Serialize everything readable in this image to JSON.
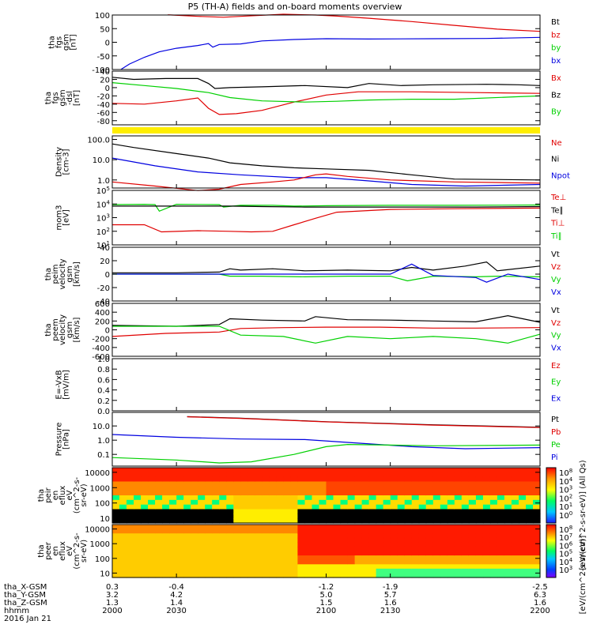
{
  "title": "P5 (TH-A) fields and on-board moments overview",
  "colors": {
    "black": "#000000",
    "red": "#e00000",
    "green": "#00d000",
    "blue": "#0000e0",
    "yellow": "#ffee00"
  },
  "chart_data": [
    {
      "id": "p1",
      "type": "line",
      "ylabel": [
        "tha",
        "fgs",
        "gsm",
        "[nT]"
      ],
      "yscale": "linear",
      "ylim": [
        -100,
        100
      ],
      "yticks": [
        "100",
        "50",
        "0",
        "-50",
        "-100"
      ],
      "legend": [
        {
          "label": "Bt",
          "color": "black"
        },
        {
          "label": "bz",
          "color": "red"
        },
        {
          "label": "by",
          "color": "green"
        },
        {
          "label": "bx",
          "color": "blue"
        }
      ],
      "series": [
        {
          "name": "bz",
          "color": "red",
          "x": [
            2026,
            2028,
            2040,
            2052,
            2060,
            2080,
            2095,
            2105,
            2120,
            2140,
            2160,
            2180,
            2200
          ],
          "y": [
            101,
            100,
            95,
            92,
            95,
            103,
            100,
            96,
            88,
            76,
            62,
            48,
            40
          ]
        },
        {
          "name": "bx",
          "color": "blue",
          "x": [
            2004,
            2008,
            2015,
            2022,
            2030,
            2040,
            2045,
            2047,
            2050,
            2060,
            2070,
            2085,
            2100,
            2120,
            2150,
            2175,
            2200
          ],
          "y": [
            -100,
            -80,
            -55,
            -35,
            -22,
            -12,
            -5,
            -18,
            -8,
            -6,
            5,
            10,
            13,
            12,
            13,
            14,
            18
          ]
        }
      ]
    },
    {
      "id": "p2",
      "type": "line",
      "ylabel": [
        "tha",
        "fgs",
        "gsm",
        "-dsl",
        "[nT]"
      ],
      "yscale": "linear",
      "ylim": [
        -90,
        40
      ],
      "yticks": [
        "40",
        "20",
        "0",
        "-20",
        "-40",
        "-60",
        "-80"
      ],
      "legend": [
        {
          "label": "Bx",
          "color": "red"
        },
        {
          "label": "Bz",
          "color": "black"
        },
        {
          "label": "By",
          "color": "green"
        }
      ],
      "series": [
        {
          "name": "Bz",
          "color": "black",
          "x": [
            2000,
            2010,
            2025,
            2040,
            2045,
            2048,
            2055,
            2070,
            2090,
            2110,
            2120,
            2135,
            2150,
            2175,
            2190,
            2200
          ],
          "y": [
            25,
            20,
            22,
            22,
            10,
            -2,
            0,
            2,
            5,
            0,
            10,
            5,
            7,
            8,
            7,
            5
          ]
        },
        {
          "name": "Bx",
          "color": "red",
          "x": [
            2000,
            2015,
            2030,
            2040,
            2045,
            2050,
            2058,
            2070,
            2085,
            2100,
            2115,
            2140,
            2170,
            2200
          ],
          "y": [
            -38,
            -40,
            -32,
            -25,
            -50,
            -65,
            -63,
            -55,
            -35,
            -18,
            -10,
            -10,
            -12,
            -14
          ]
        },
        {
          "name": "By",
          "color": "green",
          "x": [
            2000,
            2015,
            2030,
            2045,
            2055,
            2070,
            2090,
            2105,
            2120,
            2140,
            2160,
            2190,
            2200
          ],
          "y": [
            12,
            5,
            -2,
            -12,
            -24,
            -32,
            -35,
            -33,
            -30,
            -28,
            -28,
            -22,
            -20
          ]
        }
      ]
    },
    {
      "id": "p3",
      "type": "line",
      "ylabel": [
        "Density",
        "[cm-3]"
      ],
      "yscale": "log",
      "ylim": [
        0.4,
        150
      ],
      "yticks": [
        "100.0",
        "10.0",
        "1.0"
      ],
      "legend": [
        {
          "label": "Ne",
          "color": "red"
        },
        {
          "label": "Ni",
          "color": "black"
        },
        {
          "label": "Npot",
          "color": "blue"
        }
      ],
      "series": [
        {
          "name": "Ni",
          "color": "black",
          "x": [
            2000,
            2010,
            2030,
            2045,
            2055,
            2070,
            2085,
            2100,
            2120,
            2140,
            2160,
            2200
          ],
          "y": [
            60,
            40,
            20,
            12,
            7,
            5,
            4,
            3.5,
            3,
            1.8,
            1.1,
            1.0
          ]
        },
        {
          "name": "Npot",
          "color": "blue",
          "x": [
            2000,
            2020,
            2040,
            2060,
            2085,
            2100,
            2120,
            2140,
            2165,
            2200
          ],
          "y": [
            12,
            5,
            2.5,
            1.8,
            1.3,
            1.3,
            0.9,
            0.6,
            0.5,
            0.6
          ]
        },
        {
          "name": "Ne",
          "color": "red",
          "x": [
            2000,
            2020,
            2040,
            2050,
            2060,
            2075,
            2085,
            2095,
            2100,
            2110,
            2130,
            2160,
            2200
          ],
          "y": [
            0.8,
            0.5,
            0.3,
            0.35,
            0.6,
            0.8,
            1.0,
            1.8,
            2.0,
            1.5,
            1.0,
            0.8,
            0.7
          ]
        }
      ]
    },
    {
      "id": "p4",
      "type": "line",
      "ylabel": [
        "mom3",
        "[eV]"
      ],
      "yscale": "log",
      "ylim": [
        10,
        100000
      ],
      "yticks": [
        "10^5",
        "10^4",
        "10^3",
        "10^2",
        "10^1"
      ],
      "legend": [
        {
          "label": "Te⊥",
          "color": "red"
        },
        {
          "label": "Te∥",
          "color": "black"
        },
        {
          "label": "Ti⊥",
          "color": "red"
        },
        {
          "label": "Ti∥",
          "color": "green"
        }
      ],
      "series": [
        {
          "name": "Ti∥",
          "color": "green",
          "x": [
            2000,
            2015,
            2020,
            2022,
            2030,
            2050,
            2052,
            2060,
            2075,
            2085,
            2100,
            2130,
            2160,
            2200
          ],
          "y": [
            9000,
            9500,
            9000,
            3000,
            9500,
            9000,
            6000,
            8000,
            8000,
            7000,
            7500,
            8000,
            8000,
            8500
          ]
        },
        {
          "name": "Te∥",
          "color": "black",
          "x": [
            2000,
            2030,
            2055,
            2070,
            2090,
            2110,
            2140,
            2170,
            2200
          ],
          "y": [
            7000,
            7000,
            7000,
            6500,
            6000,
            6000,
            6000,
            6000,
            6500
          ]
        },
        {
          "name": "Te⊥",
          "color": "red",
          "x": [
            2000,
            2015,
            2023,
            2040,
            2055,
            2065,
            2075,
            2085,
            2095,
            2105,
            2130,
            2160,
            2200
          ],
          "y": [
            300,
            300,
            90,
            110,
            100,
            90,
            100,
            300,
            900,
            2500,
            4000,
            4500,
            5000
          ]
        }
      ]
    },
    {
      "id": "p5",
      "type": "line",
      "ylabel": [
        "tha",
        "peim",
        "velocity",
        "gsm",
        "[km/s]"
      ],
      "yscale": "linear",
      "ylim": [
        -40,
        40
      ],
      "yticks": [
        "40",
        "20",
        "0",
        "-20",
        "-40"
      ],
      "legend": [
        {
          "label": "Vt",
          "color": "black"
        },
        {
          "label": "Vz",
          "color": "red"
        },
        {
          "label": "Vy",
          "color": "green"
        },
        {
          "label": "Vx",
          "color": "blue"
        }
      ],
      "series": [
        {
          "name": "Vt",
          "color": "black",
          "x": [
            2000,
            2030,
            2050,
            2055,
            2060,
            2075,
            2090,
            2110,
            2130,
            2140,
            2150,
            2165,
            2175,
            2180,
            2200
          ],
          "y": [
            2,
            2,
            3,
            8,
            6,
            8,
            5,
            6,
            5,
            10,
            6,
            12,
            18,
            5,
            12
          ]
        },
        {
          "name": "Vy",
          "color": "green",
          "x": [
            2000,
            2050,
            2055,
            2070,
            2090,
            2110,
            2130,
            2138,
            2150,
            2170,
            2180,
            2200
          ],
          "y": [
            0,
            0,
            -3,
            -3,
            -4,
            -3,
            -3,
            -10,
            -3,
            -4,
            -3,
            -4
          ]
        },
        {
          "name": "Vx",
          "color": "blue",
          "x": [
            2000,
            2050,
            2100,
            2130,
            2140,
            2150,
            2170,
            2175,
            2185,
            2200
          ],
          "y": [
            0,
            0,
            0,
            0,
            15,
            -2,
            -5,
            -12,
            0,
            -8
          ]
        }
      ]
    },
    {
      "id": "p6",
      "type": "line",
      "ylabel": [
        "tha",
        "peem",
        "velocity",
        "gsm",
        "[km/s]"
      ],
      "yscale": "linear",
      "ylim": [
        -600,
        600
      ],
      "yticks": [
        "600",
        "400",
        "200",
        "0",
        "-200",
        "-400",
        "-600"
      ],
      "legend": [
        {
          "label": "Vt",
          "color": "black"
        },
        {
          "label": "Vz",
          "color": "red"
        },
        {
          "label": "Vy",
          "color": "green"
        },
        {
          "label": "Vx",
          "color": "blue"
        }
      ],
      "series": [
        {
          "name": "Vt",
          "color": "black",
          "x": [
            2000,
            2030,
            2050,
            2055,
            2070,
            2090,
            2095,
            2110,
            2130,
            2150,
            2170,
            2185,
            2200
          ],
          "y": [
            100,
            80,
            120,
            250,
            220,
            200,
            300,
            230,
            220,
            200,
            180,
            320,
            170
          ]
        },
        {
          "name": "Vz",
          "color": "red",
          "x": [
            2000,
            2025,
            2050,
            2060,
            2080,
            2100,
            2125,
            2150,
            2170,
            2200
          ],
          "y": [
            -150,
            -80,
            -50,
            30,
            50,
            60,
            60,
            40,
            40,
            50
          ]
        },
        {
          "name": "Vy",
          "color": "green",
          "x": [
            2000,
            2050,
            2060,
            2080,
            2095,
            2110,
            2130,
            2150,
            2170,
            2185,
            2200
          ],
          "y": [
            80,
            80,
            -120,
            -150,
            -300,
            -150,
            -200,
            -150,
            -200,
            -300,
            -100
          ]
        }
      ]
    },
    {
      "id": "p7",
      "type": "line",
      "ylabel": [
        "E=-VxB",
        "[mV/m]"
      ],
      "yscale": "linear",
      "ylim": [
        0,
        1
      ],
      "yticks": [
        "1.0",
        "0.8",
        "0.6",
        "0.4",
        "0.2",
        "0.0"
      ],
      "legend": [
        {
          "label": "Ez",
          "color": "red"
        },
        {
          "label": "Ey",
          "color": "green"
        },
        {
          "label": "Ex",
          "color": "blue"
        }
      ],
      "series": []
    },
    {
      "id": "p8",
      "type": "line",
      "ylabel": [
        "Pressure",
        "[nPa]"
      ],
      "yscale": "log",
      "ylim": [
        0.015,
        90
      ],
      "yticks": [
        "10.0",
        "1.0",
        "0.1"
      ],
      "legend": [
        {
          "label": "Pt",
          "color": "black"
        },
        {
          "label": "Pb",
          "color": "red"
        },
        {
          "label": "Pe",
          "color": "green"
        },
        {
          "label": "Pi",
          "color": "blue"
        }
      ],
      "series": [
        {
          "name": "Pt",
          "color": "black",
          "x": [
            2035,
            2060,
            2100,
            2150,
            2200
          ],
          "y": [
            45,
            35,
            20,
            12,
            8
          ]
        },
        {
          "name": "Pb",
          "color": "red",
          "x": [
            2035,
            2060,
            2100,
            2150,
            2200
          ],
          "y": [
            44,
            34,
            19.5,
            11.5,
            7.7
          ]
        },
        {
          "name": "Pi",
          "color": "blue",
          "x": [
            2000,
            2030,
            2060,
            2090,
            2110,
            2140,
            2165,
            2200
          ],
          "y": [
            2.5,
            1.6,
            1.2,
            1.1,
            0.7,
            0.35,
            0.25,
            0.3
          ]
        },
        {
          "name": "Pe",
          "color": "green",
          "x": [
            2000,
            2030,
            2050,
            2065,
            2085,
            2100,
            2110,
            2130,
            2150,
            2200
          ],
          "y": [
            0.06,
            0.04,
            0.025,
            0.03,
            0.1,
            0.35,
            0.5,
            0.45,
            0.4,
            0.45
          ]
        }
      ]
    },
    {
      "id": "p9",
      "type": "heatmap",
      "ylabel": [
        "tha",
        "peir",
        "en",
        "eflux",
        "eV",
        "(cm^2-s-",
        "sr-eV)"
      ],
      "yscale": "log",
      "ylim": [
        5,
        20000
      ],
      "yticks": [
        "10000",
        "1000",
        "100",
        "10"
      ],
      "colorbar": {
        "ticks": [
          "10^8",
          "10^4",
          "10^3",
          "10^2",
          "10^1",
          "10^0"
        ],
        "label": "[eV/(cm^2-s-sr-eV)] (All Qs)"
      }
    },
    {
      "id": "p10",
      "type": "heatmap",
      "ylabel": [
        "tha",
        "peer",
        "en",
        "eflux",
        "eV",
        "(cm^2-s-",
        "sr-eV)"
      ],
      "yscale": "log",
      "ylim": [
        5,
        20000
      ],
      "yticks": [
        "10000",
        "1000",
        "100",
        "10"
      ],
      "colorbar": {
        "ticks": [
          "10^8",
          "10^7",
          "10^6",
          "10^5",
          "10^4",
          "10^3"
        ],
        "label": "[eV/(cm^2-s-sr-eV)]"
      }
    }
  ],
  "footer": {
    "rows": [
      {
        "label": "tha_X-GSM",
        "values": [
          "0.3",
          "-0.4",
          "-1.2",
          "-1.9",
          "-2.5"
        ]
      },
      {
        "label": "tha_Y-GSM",
        "values": [
          "3.2",
          "4.2",
          "5.0",
          "5.7",
          "6.3"
        ]
      },
      {
        "label": "tha_Z-GSM",
        "values": [
          "1.3",
          "1.4",
          "1.5",
          "1.6",
          "1.6"
        ]
      },
      {
        "label": "hhmm",
        "values": [
          "2000",
          "2030",
          "2100",
          "2130",
          "2200"
        ]
      }
    ],
    "date": "2016 Jan 21"
  }
}
